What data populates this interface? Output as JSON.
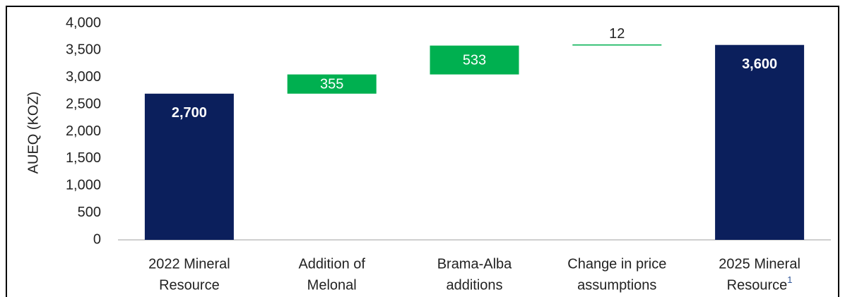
{
  "chart_data": {
    "type": "waterfall",
    "y_label": "AUEQ (KOZ)",
    "categories": [
      [
        "2022 Mineral",
        "Resource"
      ],
      [
        "Addition of",
        "Melonal"
      ],
      [
        "Brama-Alba",
        "additions"
      ],
      [
        "Change in price",
        "assumptions"
      ],
      [
        "2025 Mineral",
        "Resource"
      ]
    ],
    "category_footnotes": [
      null,
      null,
      null,
      null,
      "1"
    ],
    "measure": [
      "absolute",
      "relative",
      "relative",
      "relative",
      "absolute"
    ],
    "values": [
      2700,
      355,
      533,
      12,
      3600
    ],
    "value_labels": [
      "2,700",
      "355",
      "533",
      "12",
      "3,600"
    ],
    "colors": {
      "absolute": "#0b1f5c",
      "relative": "#00b050"
    },
    "ylim": [
      0,
      4000
    ],
    "yticks": [
      0,
      500,
      {
        "value": 1000,
        "label": "1,000"
      },
      {
        "value": 1500,
        "label": "1,500"
      },
      {
        "value": 2000,
        "label": "2,000"
      },
      {
        "value": 2500,
        "label": "2,500"
      },
      {
        "value": 3000,
        "label": "3,000"
      },
      {
        "value": 3500,
        "label": "3,500"
      },
      {
        "value": 4000,
        "label": "4,000"
      }
    ],
    "grid": false
  }
}
